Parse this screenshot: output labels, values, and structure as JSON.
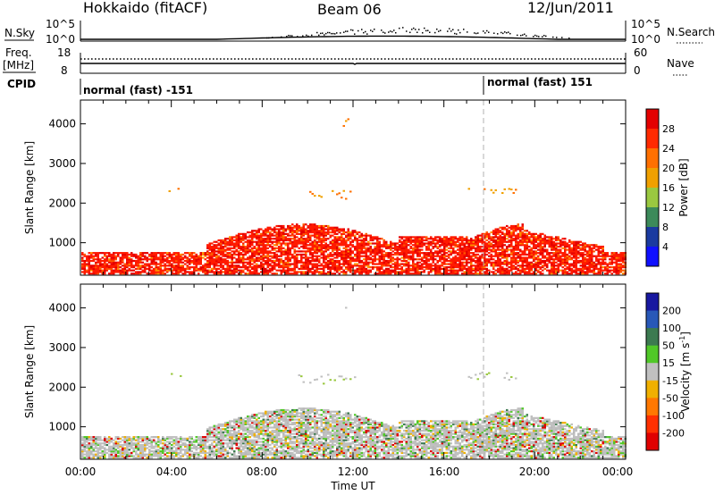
{
  "header": {
    "station": "Hokkaido (fitACF)",
    "beam": "Beam 06",
    "date": "12/Jun/2011"
  },
  "top_panels": {
    "nsky_label": "N.Sky",
    "nsearch_label": "N.Search",
    "nsky_ticks": [
      "10^5",
      "10^0"
    ],
    "nsearch_ticks": [
      "10^5",
      "10^0"
    ],
    "freq_label_line1": "Freq.",
    "freq_label_line2": "[MHz]",
    "freq_ticks": [
      "18",
      "8"
    ],
    "nave_label": "Nave",
    "nave_ticks": [
      "60",
      "0"
    ],
    "cpid_label": "CPID",
    "cpid_segments": [
      {
        "text": "normal (fast) -151",
        "start_hour": 0
      },
      {
        "text": "normal (fast) 151",
        "start_hour": 18
      }
    ]
  },
  "chart_data": [
    {
      "type": "heatmap",
      "name": "power",
      "ylabel": "Slant Range [km]",
      "ylim": [
        180,
        4600
      ],
      "yticks": [
        1000,
        2000,
        3000,
        4000
      ],
      "xlim": [
        0,
        24
      ],
      "colorbar": {
        "label": "Power [dB]",
        "ticks": [
          "28",
          "24",
          "20",
          "16",
          "12",
          "8",
          "4"
        ],
        "colors": [
          "#e40000",
          "#ff2a00",
          "#ff7000",
          "#f0a000",
          "#9ac840",
          "#3c8a5a",
          "#1a3aa0",
          "#1010ff"
        ]
      }
    },
    {
      "type": "heatmap",
      "name": "velocity",
      "ylabel": "Slant Range [km]",
      "ylim": [
        180,
        4600
      ],
      "yticks": [
        1000,
        2000,
        3000,
        4000
      ],
      "xlim": [
        0,
        24
      ],
      "colorbar": {
        "label_main": "Velocity [m s",
        "label_sup": "-1",
        "label_end": "]",
        "ticks": [
          "200",
          "100",
          "50",
          "15",
          "-15",
          "-50",
          "-100",
          "-200"
        ],
        "colors": [
          "#1818a0",
          "#2858b8",
          "#3c7a50",
          "#50c828",
          "#c0c0c0",
          "#f0b000",
          "#ff7800",
          "#ff3000",
          "#e00000"
        ]
      }
    }
  ],
  "xaxis": {
    "ticks": [
      "00:00",
      "04:00",
      "08:00",
      "12:00",
      "16:00",
      "20:00",
      "00:00"
    ],
    "label": "Time UT"
  }
}
